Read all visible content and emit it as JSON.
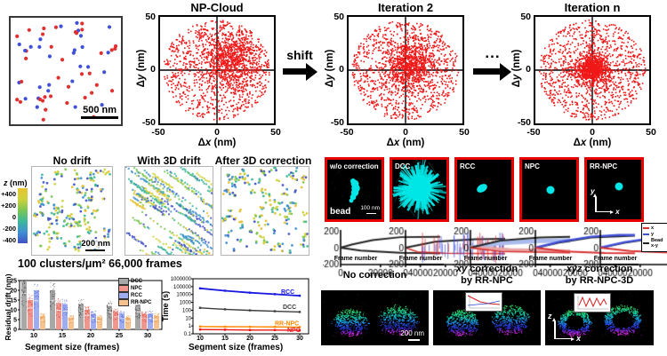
{
  "panel_a": {
    "scalebar": "500 nm",
    "colors": {
      "red": "#e03030",
      "blue": "#4050d8"
    },
    "n_points": 64,
    "seed": 5
  },
  "np": {
    "titles": [
      "NP-Cloud",
      "Iteration 2",
      "Iteration n"
    ],
    "shift_label": "shift",
    "ellipsis": "...",
    "ylabel_pre": "Δ",
    "ylabel_var": "y",
    "ylabel_unit": " (nm)",
    "xlabel_pre": "Δ",
    "xlabel_var": "x",
    "xlabel_unit": " (nm)",
    "yticks": [
      "50",
      "0",
      "-50"
    ],
    "xticks": [
      "-50",
      "0",
      "50"
    ],
    "point_color": "#f01818",
    "clouds": [
      {
        "seed": 11,
        "n_disk": 950,
        "disk_r": 47,
        "n_gauss": 750,
        "gauss_center": [
          13,
          9
        ],
        "gauss_sigma": 13
      },
      {
        "seed": 22,
        "n_disk": 950,
        "disk_r": 47,
        "n_gauss": 750,
        "gauss_center": [
          4,
          4
        ],
        "gauss_sigma": 11
      },
      {
        "seed": 33,
        "n_disk": 1050,
        "disk_r": 47,
        "n_gauss": 850,
        "gauss_center": [
          0,
          1
        ],
        "gauss_sigma": 7
      }
    ]
  },
  "drift": {
    "titles": [
      "No drift",
      "With 3D drift",
      "After 3D correction"
    ],
    "colorbar_var": "z",
    "colorbar_unit": " (nm)",
    "colorbar_ticks": [
      "+400",
      "+200",
      "0",
      "-200",
      "-400"
    ],
    "scalebar": "200 nm",
    "caption": "100 clusters/μm²  66,000 frames",
    "palette": [
      "#e8c233",
      "#cdd23b",
      "#7cc653",
      "#3db89a",
      "#3f8fd2",
      "#4252c4"
    ],
    "panels": [
      {
        "mode": "dots",
        "seed": 101,
        "n": 120
      },
      {
        "mode": "streaks",
        "seed": 102,
        "n": 64
      },
      {
        "mode": "dots",
        "seed": 103,
        "n": 120
      }
    ]
  },
  "beads": {
    "labels": [
      "w/o correction",
      "DCC",
      "RCC",
      "NPC",
      "RR-NPC"
    ],
    "bead_label": "bead",
    "scalebar": "100 nm",
    "axis_y": "y",
    "axis_x": "x",
    "border_color": "#e60000",
    "blob_color": "#00e6e6"
  },
  "traces": {
    "xlabel": "Frame number",
    "legend": [
      {
        "label": "x",
        "color": "#d83030"
      },
      {
        "label": "y",
        "color": "#4050d8"
      },
      {
        "label": "Bead\nx-y",
        "color": "#222222"
      }
    ]
  },
  "bottom": {
    "t1": "No correction",
    "t2_it": "xy",
    "t2_rest": " correction",
    "t2_l2": "by RR-NPC",
    "t3_it": "xyz",
    "t3_rest": " correction",
    "t3_l2": "by RR-NPC-3D",
    "scalebar": "200 nm",
    "axis_z": "z",
    "axis_x": "x",
    "panels": [
      {
        "seed": 7,
        "smear": 9,
        "ring": false,
        "inset": null
      },
      {
        "seed": 8,
        "smear": 4,
        "ring": false,
        "inset": "decay"
      },
      {
        "seed": 9,
        "smear": 3,
        "ring": true,
        "inset": "zigzag"
      }
    ],
    "palette_stops": [
      [
        0,
        "#38e058"
      ],
      [
        0.28,
        "#18dcb0"
      ],
      [
        0.45,
        "#18b0ec"
      ],
      [
        0.6,
        "#2862f8"
      ],
      [
        0.75,
        "#2830dc"
      ],
      [
        0.9,
        "#c828e8"
      ],
      [
        1,
        "#e028d8"
      ]
    ]
  },
  "chart_data": [
    {
      "id": "np-iteration-clouds",
      "type": "scatter",
      "titles": [
        "NP-Cloud",
        "Iteration 2",
        "Iteration n"
      ],
      "xlabel": "Δx (nm)",
      "ylabel": "Δy (nm)",
      "xlim": [
        -50,
        50
      ],
      "ylim": [
        -50,
        50
      ],
      "xticks": [
        -50,
        0,
        50
      ],
      "yticks": [
        -50,
        0,
        50
      ],
      "note": "dense red cloud of pairwise localization offsets within a 50 nm radius disk; density concentrates toward origin as iterations progress"
    },
    {
      "id": "residual-drift",
      "type": "bar",
      "xlabel": "Segment size (frames)",
      "ylabel": "Residual drift (nm)",
      "ylim": [
        0,
        25
      ],
      "yticks": [
        0,
        5,
        10,
        15,
        20,
        25
      ],
      "categories": [
        "10",
        "15",
        "20",
        "25",
        "30"
      ],
      "series": [
        {
          "name": "DCC",
          "bar": "#a8a8a8",
          "dot": "#141414",
          "values": [
            25,
            20,
            13,
            12,
            12.5
          ]
        },
        {
          "name": "NPC",
          "bar": "#f2958c",
          "dot": "#d93025",
          "values": [
            15,
            13.5,
            10,
            9,
            8
          ]
        },
        {
          "name": "RCC",
          "bar": "#9fadef",
          "dot": "#3a50cc",
          "values": [
            20,
            13,
            8,
            8,
            8
          ]
        },
        {
          "name": "RR-NPC",
          "bar": "#f6c28f",
          "dot": "#ef8a2a",
          "values": [
            7,
            6,
            6,
            6,
            7
          ]
        }
      ]
    },
    {
      "id": "computation-time",
      "type": "line",
      "xlabel": "Segment size (frames)",
      "ylabel": "Time (s)",
      "yscale": "log",
      "ylim": [
        0.1,
        1000000
      ],
      "yticks": [
        "0.1",
        "1",
        "10",
        "100",
        "1000",
        "10000",
        "100000",
        "1000000"
      ],
      "x": [
        10,
        15,
        20,
        25,
        30
      ],
      "series": [
        {
          "name": "RCC",
          "color": "#1818e0",
          "values": [
            60000,
            30000,
            17000,
            11000,
            7000
          ]
        },
        {
          "name": "DCC",
          "color": "#3c3c3c",
          "values": [
            200,
            130,
            95,
            75,
            60
          ]
        },
        {
          "name": "RR-NPC",
          "color": "#ff8800",
          "values": [
            0.85,
            0.8,
            0.78,
            0.75,
            0.72
          ]
        },
        {
          "name": "NPC",
          "color": "#e81515",
          "values": [
            0.35,
            0.33,
            0.3,
            0.3,
            0.28
          ]
        }
      ]
    },
    {
      "id": "bead-drift-traces",
      "type": "line",
      "xlabel": "Frame number",
      "xticks": [
        "0",
        "20000",
        "40000"
      ],
      "yticks": [
        "200",
        "0",
        "-200"
      ],
      "xlim": [
        0,
        50000
      ],
      "ylim": [
        -200,
        200
      ],
      "panels": [
        {
          "name": "w/o correction",
          "spikes": false,
          "series": [
            {
              "c": "#222222",
              "w": 1,
              "pts": [
                [
                  0,
                  0
                ],
                [
                  6000,
                  40
                ],
                [
                  16000,
                  90
                ],
                [
                  30000,
                  125
                ],
                [
                  50000,
                  130
                ]
              ]
            },
            {
              "c": "#222222",
              "w": 1,
              "pts": [
                [
                  0,
                  0
                ],
                [
                  10000,
                  -35
                ],
                [
                  30000,
                  -60
                ],
                [
                  50000,
                  -65
                ]
              ]
            }
          ]
        },
        {
          "name": "DCC",
          "spikes": true,
          "series": [
            {
              "c": "#d83030",
              "w": 0.8,
              "pts": [
                [
                  0,
                  0
                ],
                [
                  6000,
                  -50
                ],
                [
                  20000,
                  -65
                ],
                [
                  50000,
                  -70
                ]
              ]
            },
            {
              "c": "#222222",
              "w": 1,
              "pts": [
                [
                  0,
                  0
                ],
                [
                  15000,
                  70
                ],
                [
                  35000,
                  100
                ],
                [
                  50000,
                  105
                ]
              ]
            }
          ]
        },
        {
          "name": "RCC",
          "spikes": false,
          "series": [
            {
              "c": "#aabcee",
              "w": 2.4,
              "pts": [
                [
                  0,
                  0
                ],
                [
                  15000,
                  55
                ],
                [
                  35000,
                  80
                ],
                [
                  50000,
                  85
                ]
              ]
            },
            {
              "c": "#eaa4a4",
              "w": 1.8,
              "pts": [
                [
                  0,
                  5
                ],
                [
                  20000,
                  -25
                ],
                [
                  50000,
                  -40
                ]
              ]
            },
            {
              "c": "#222222",
              "w": 1,
              "pts": [
                [
                  0,
                  0
                ],
                [
                  15000,
                  85
                ],
                [
                  35000,
                  120
                ],
                [
                  50000,
                  128
                ]
              ]
            },
            {
              "c": "#d83030",
              "w": 0.8,
              "pts": [
                [
                  0,
                  0
                ],
                [
                  15000,
                  -45
                ],
                [
                  50000,
                  -60
                ]
              ]
            }
          ]
        },
        {
          "name": "NPC",
          "spikes": false,
          "series": [
            {
              "c": "#222222",
              "w": 0.8,
              "pts": [
                [
                  0,
                  -4
                ],
                [
                  12000,
                  58
                ],
                [
                  28000,
                  120
                ],
                [
                  50000,
                  140
                ]
              ]
            },
            {
              "c": "#4050d8",
              "w": 1.2,
              "pts": [
                [
                  0,
                  0
                ],
                [
                  12000,
                  70
                ],
                [
                  28000,
                  130
                ],
                [
                  42000,
                  150
                ],
                [
                  50000,
                  150
                ]
              ]
            },
            {
              "c": "#d83030",
              "w": 1,
              "pts": [
                [
                  0,
                  0
                ],
                [
                  15000,
                  -45
                ],
                [
                  35000,
                  -62
                ],
                [
                  50000,
                  -65
                ]
              ]
            }
          ]
        },
        {
          "name": "RR-NPC",
          "spikes": false,
          "series": [
            {
              "c": "#222222",
              "w": 0.8,
              "pts": [
                [
                  0,
                  -4
                ],
                [
                  12000,
                  55
                ],
                [
                  30000,
                  118
                ],
                [
                  50000,
                  138
                ]
              ]
            },
            {
              "c": "#4050d8",
              "w": 1.2,
              "pts": [
                [
                  0,
                  0
                ],
                [
                  12000,
                  65
                ],
                [
                  30000,
                  128
                ],
                [
                  45000,
                  148
                ],
                [
                  50000,
                  145
                ]
              ]
            },
            {
              "c": "#d83030",
              "w": 1,
              "pts": [
                [
                  0,
                  0
                ],
                [
                  15000,
                  -40
                ],
                [
                  35000,
                  -58
                ],
                [
                  50000,
                  -62
                ]
              ]
            }
          ]
        }
      ]
    }
  ]
}
